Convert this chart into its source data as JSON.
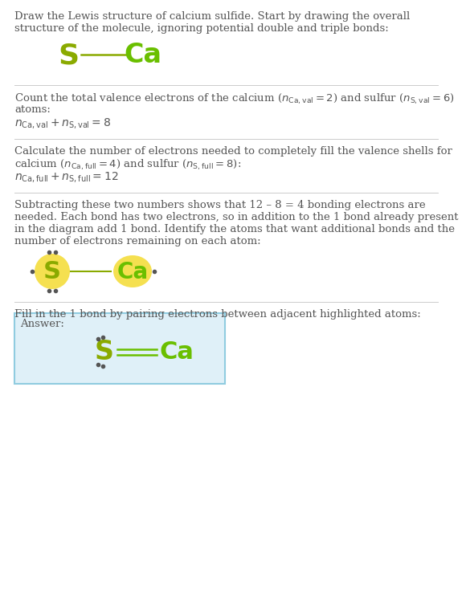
{
  "bg_color": "#ffffff",
  "text_color": "#555555",
  "atom_color_s": "#8aaa00",
  "atom_color_ca": "#6abf00",
  "line_color": "#cccccc",
  "answer_box_color": "#dff0f8",
  "answer_box_border": "#90cce0",
  "highlight_color": "#f5e050",
  "dot_color": "#555555",
  "bond_line_color": "#8aaa00",
  "bond_line_color2": "#6abf00",
  "section1_line1": "Draw the Lewis structure of calcium sulfide. Start by drawing the overall",
  "section1_line2": "structure of the molecule, ignoring potential double and triple bonds:",
  "section2_line1": "Count the total valence electrons of the calcium ($n_{\\mathrm{Ca,val}} = 2$) and sulfur ($n_{\\mathrm{S,val}} = 6$)",
  "section2_line2": "atoms:",
  "section2_eq": "$n_{\\mathrm{Ca,val}} + n_{\\mathrm{S,val}} = 8$",
  "section3_line1": "Calculate the number of electrons needed to completely fill the valence shells for",
  "section3_line2": "calcium ($n_{\\mathrm{Ca,full}} = 4$) and sulfur ($n_{\\mathrm{S,full}} = 8$):",
  "section3_eq": "$n_{\\mathrm{Ca,full}} + n_{\\mathrm{S,full}} = 12$",
  "section4_line1": "Subtracting these two numbers shows that 12 – 8 = 4 bonding electrons are",
  "section4_line2": "needed. Each bond has two electrons, so in addition to the 1 bond already present",
  "section4_line3": "in the diagram add 1 bond. Identify the atoms that want additional bonds and the",
  "section4_line4": "number of electrons remaining on each atom:",
  "section5_line1": "Fill in the 1 bond by pairing electrons between adjacent highlighted atoms:",
  "answer_label": "Answer:"
}
